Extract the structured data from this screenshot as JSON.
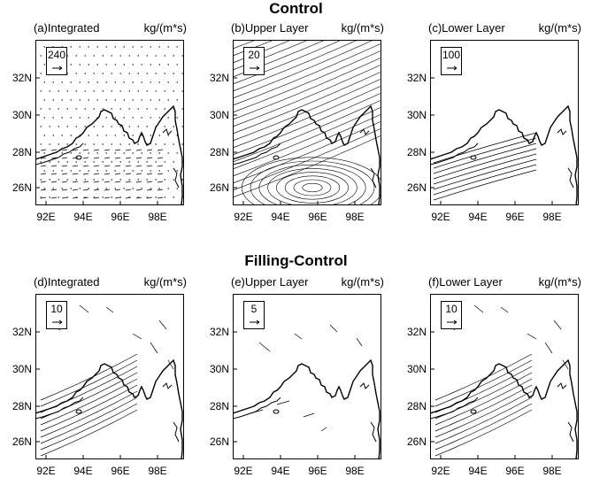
{
  "rows": [
    {
      "title": "Control",
      "panels": [
        {
          "label": "(a)Integrated",
          "unit": "kg/(m*s)",
          "ref_value": "240",
          "field": "dots"
        },
        {
          "label": "(b)Upper Layer",
          "unit": "kg/(m*s)",
          "ref_value": "20",
          "field": "dense-swirl"
        },
        {
          "label": "(c)Lower Layer",
          "unit": "kg/(m*s)",
          "ref_value": "100",
          "field": "south-streams"
        }
      ]
    },
    {
      "title": "Filling-Control",
      "panels": [
        {
          "label": "(d)Integrated",
          "unit": "kg/(m*s)",
          "ref_value": "10",
          "field": "diff-long"
        },
        {
          "label": "(e)Upper Layer",
          "unit": "kg/(m*s)",
          "ref_value": "5",
          "field": "diff-sparse"
        },
        {
          "label": "(f)Lower Layer",
          "unit": "kg/(m*s)",
          "ref_value": "10",
          "field": "diff-long"
        }
      ]
    }
  ],
  "lon_ticks": [
    "92E",
    "94E",
    "96E",
    "98E"
  ],
  "lat_ticks": [
    "32N",
    "30N",
    "28N",
    "26N"
  ]
}
